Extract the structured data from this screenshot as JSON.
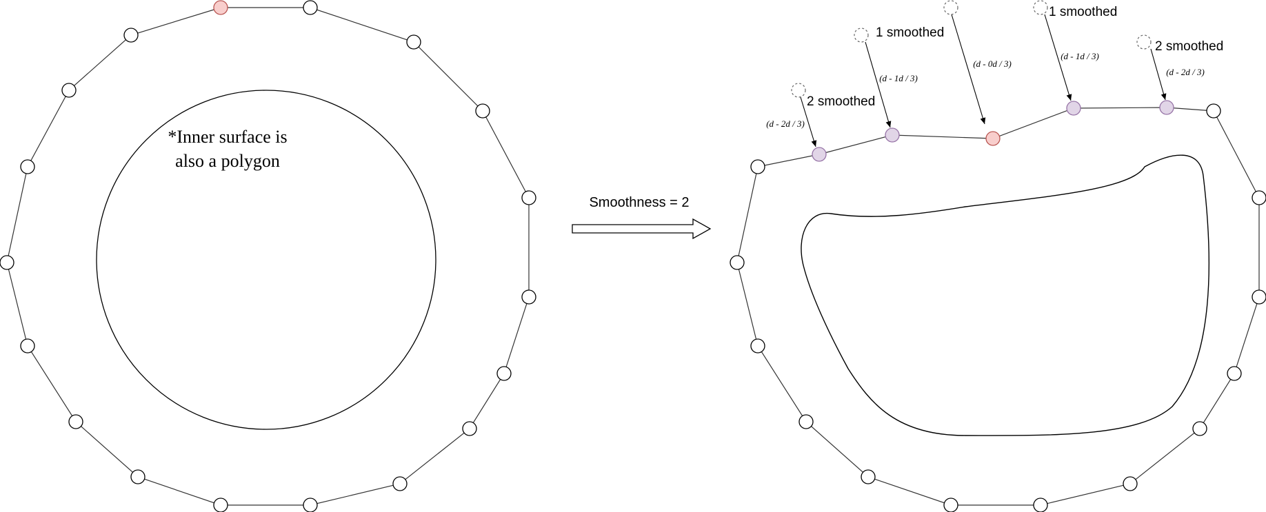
{
  "annotations": {
    "inner_surface_note_line1": "*Inner surface is",
    "inner_surface_note_line2": "also a polygon",
    "smoothness_label": "Smoothness = 2"
  },
  "displacements": [
    {
      "formula": "(d - 2d / 3)",
      "smoothed_label": "2 smoothed"
    },
    {
      "formula": "(d - 1d / 3)",
      "smoothed_label": "1 smoothed"
    },
    {
      "formula": "(d - 0d / 3)",
      "smoothed_label": ""
    },
    {
      "formula": "(d - 1d / 3)",
      "smoothed_label": "1 smoothed"
    },
    {
      "formula": "(d - 2d / 3)",
      "smoothed_label": "2 smoothed"
    }
  ],
  "colors": {
    "stroke": "#000000",
    "light_stroke": "#808080",
    "vertex_fill": "#ffffff",
    "highlight_vertex": "#f8cecc",
    "highlight_stroke": "#b85450",
    "smoothed_vertex": "#e1d5e7",
    "smoothed_stroke": "#9673a6",
    "ghost_stroke": "#666666"
  }
}
